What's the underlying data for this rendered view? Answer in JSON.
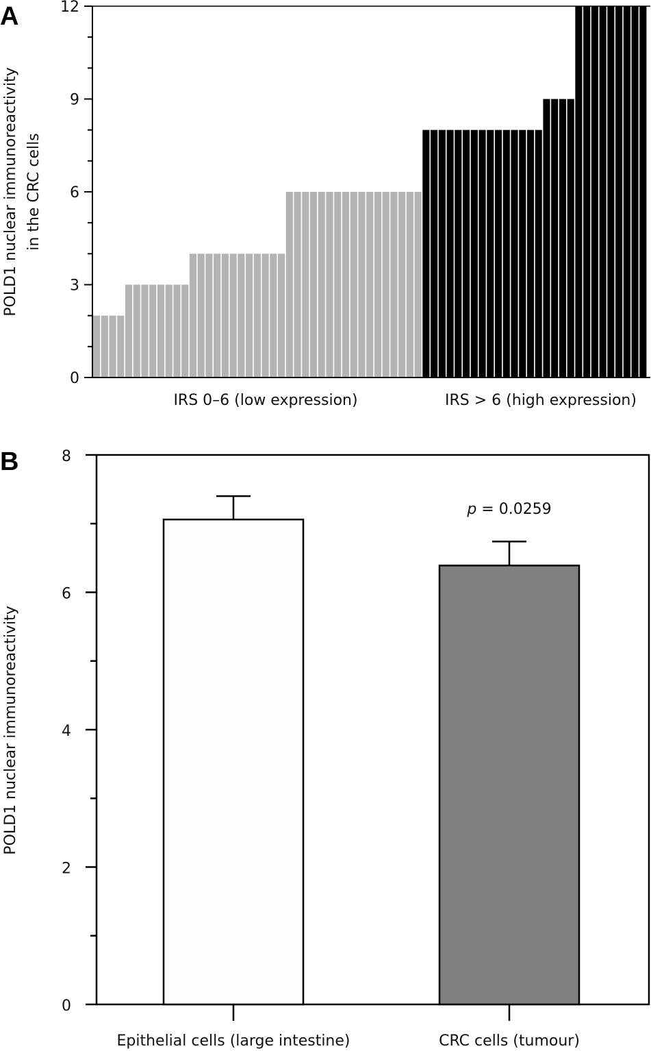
{
  "chart_data": [
    {
      "panel": "A",
      "type": "bar",
      "ylabel_lines": [
        "POLD1 nuclear immunoreactivity",
        "in the CRC cells"
      ],
      "ylim": [
        0,
        12
      ],
      "yticks": [
        0,
        3,
        6,
        9,
        12
      ],
      "groups": [
        {
          "name": "IRS 0–6 (low expression)",
          "color": "#b3b3b3",
          "levels": [
            {
              "value": 2,
              "count": 4
            },
            {
              "value": 3,
              "count": 8
            },
            {
              "value": 4,
              "count": 12
            },
            {
              "value": 6,
              "count": 17
            }
          ]
        },
        {
          "name": "IRS > 6 (high expression)",
          "color": "#000000",
          "levels": [
            {
              "value": 8,
              "count": 15
            },
            {
              "value": 9,
              "count": 4
            },
            {
              "value": 12,
              "count": 9
            }
          ]
        }
      ]
    },
    {
      "panel": "B",
      "type": "bar",
      "ylabel": "POLD1 nuclear immunoreactivity",
      "ylim": [
        0,
        8
      ],
      "yticks": [
        0,
        2,
        4,
        6,
        8
      ],
      "categories": [
        "Epithelial cells (large intestine)",
        "CRC cells (tumour)"
      ],
      "values": [
        7.06,
        6.39
      ],
      "errors": [
        0.34,
        0.35
      ],
      "colors": [
        "#fdfdfd",
        "#808080"
      ],
      "annotation": {
        "p_symbol": "p",
        "text": " = 0.0259"
      }
    }
  ]
}
